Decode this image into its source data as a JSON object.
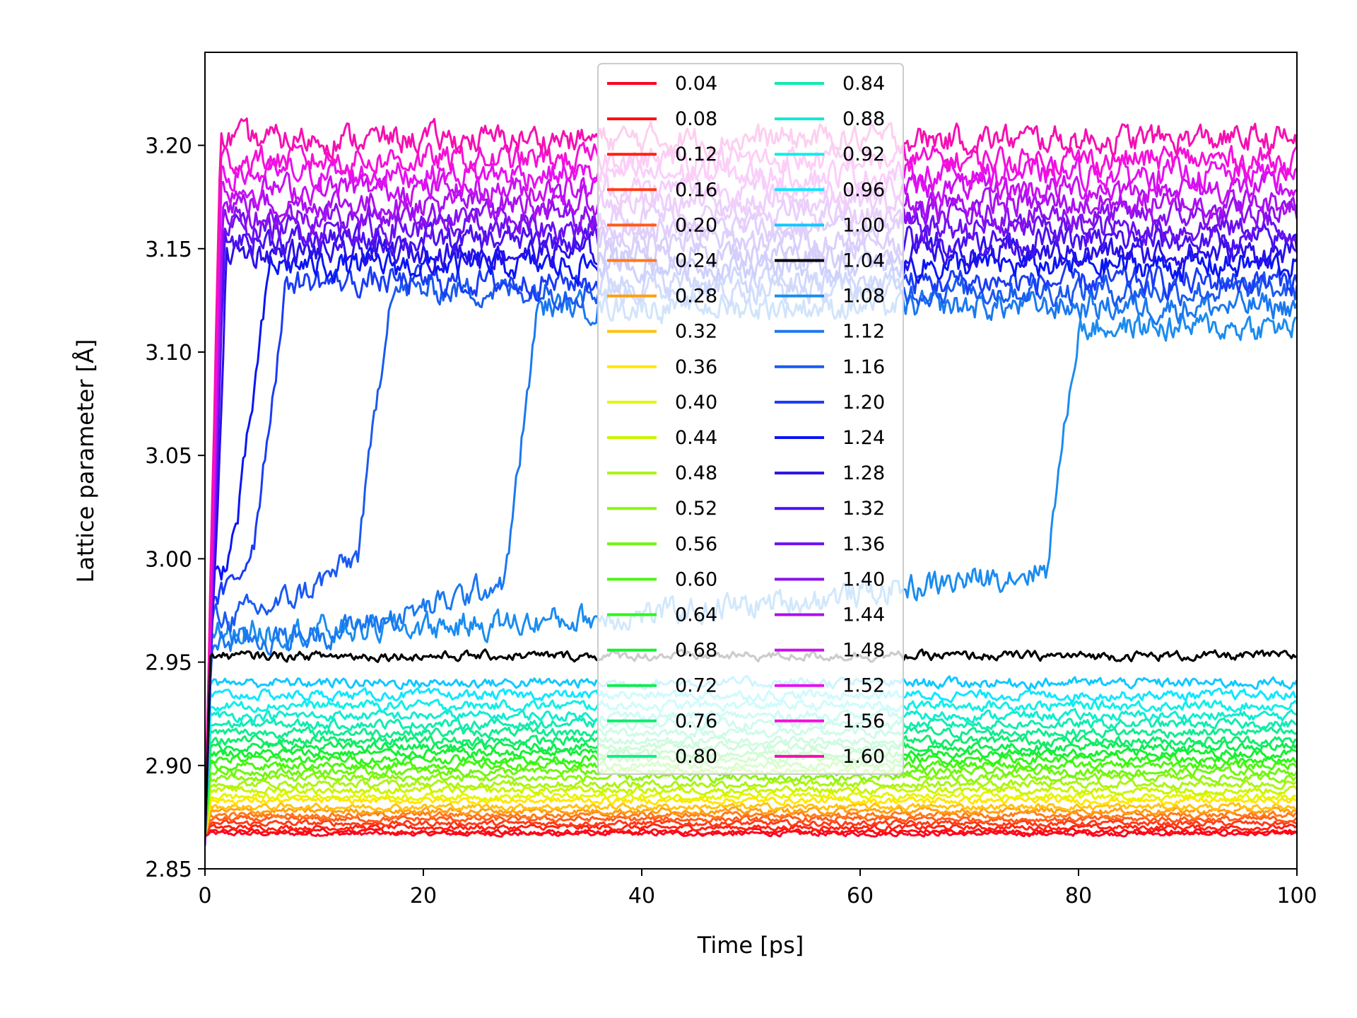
{
  "chart_data": {
    "type": "line",
    "xlabel": "Time [ps]",
    "ylabel": "Lattice parameter [Å]",
    "xlim": [
      0,
      100
    ],
    "ylim": [
      2.85,
      3.245
    ],
    "xticks": [
      "0",
      "20",
      "40",
      "60",
      "80",
      "100"
    ],
    "yticks": [
      "2.85",
      "2.90",
      "2.95",
      "3.00",
      "3.05",
      "3.10",
      "3.15",
      "3.20"
    ],
    "grid": false,
    "legend": {
      "placement": "top-center",
      "columns": 2
    },
    "noise_amplitude_note": "",
    "series": [
      {
        "name": "0.04",
        "color": "#ff0022",
        "baseline": 2.867,
        "jump_time": null,
        "final": null
      },
      {
        "name": "0.08",
        "color": "#ff0a12",
        "baseline": 2.868,
        "jump_time": null,
        "final": null
      },
      {
        "name": "0.12",
        "color": "#ff2010",
        "baseline": 2.87,
        "jump_time": null,
        "final": null
      },
      {
        "name": "0.16",
        "color": "#ff3a18",
        "baseline": 2.872,
        "jump_time": null,
        "final": null
      },
      {
        "name": "0.20",
        "color": "#ff5a1a",
        "baseline": 2.874,
        "jump_time": null,
        "final": null
      },
      {
        "name": "0.24",
        "color": "#ff7a1a",
        "baseline": 2.876,
        "jump_time": null,
        "final": null
      },
      {
        "name": "0.28",
        "color": "#ff9f10",
        "baseline": 2.878,
        "jump_time": null,
        "final": null
      },
      {
        "name": "0.32",
        "color": "#ffc210",
        "baseline": 2.88,
        "jump_time": null,
        "final": null
      },
      {
        "name": "0.36",
        "color": "#ffe600",
        "baseline": 2.883,
        "jump_time": null,
        "final": null
      },
      {
        "name": "0.40",
        "color": "#e6f500",
        "baseline": 2.885,
        "jump_time": null,
        "final": null
      },
      {
        "name": "0.44",
        "color": "#c8f500",
        "baseline": 2.888,
        "jump_time": null,
        "final": null
      },
      {
        "name": "0.48",
        "color": "#aaf510",
        "baseline": 2.891,
        "jump_time": null,
        "final": null
      },
      {
        "name": "0.52",
        "color": "#8cf510",
        "baseline": 2.894,
        "jump_time": null,
        "final": null
      },
      {
        "name": "0.56",
        "color": "#6ef510",
        "baseline": 2.897,
        "jump_time": null,
        "final": null
      },
      {
        "name": "0.60",
        "color": "#4ef510",
        "baseline": 2.9,
        "jump_time": null,
        "final": null
      },
      {
        "name": "0.64",
        "color": "#2ef51a",
        "baseline": 2.903,
        "jump_time": null,
        "final": null
      },
      {
        "name": "0.68",
        "color": "#16f030",
        "baseline": 2.906,
        "jump_time": null,
        "final": null
      },
      {
        "name": "0.72",
        "color": "#10ec50",
        "baseline": 2.909,
        "jump_time": null,
        "final": null
      },
      {
        "name": "0.76",
        "color": "#10ec70",
        "baseline": 2.912,
        "jump_time": null,
        "final": null
      },
      {
        "name": "0.80",
        "color": "#10ec90",
        "baseline": 2.916,
        "jump_time": null,
        "final": null
      },
      {
        "name": "0.84",
        "color": "#10ecb0",
        "baseline": 2.92,
        "jump_time": null,
        "final": null
      },
      {
        "name": "0.88",
        "color": "#10ecd0",
        "baseline": 2.924,
        "jump_time": null,
        "final": null
      },
      {
        "name": "0.92",
        "color": "#10eee8",
        "baseline": 2.929,
        "jump_time": null,
        "final": null
      },
      {
        "name": "0.96",
        "color": "#10e6ff",
        "baseline": 2.934,
        "jump_time": null,
        "final": null
      },
      {
        "name": "1.00",
        "color": "#10c8ff",
        "baseline": 2.94,
        "jump_time": null,
        "final": null
      },
      {
        "name": "1.04",
        "color": "#000000",
        "baseline": 2.953,
        "jump_time": null,
        "final": null
      },
      {
        "name": "1.08",
        "color": "#1a8cf0",
        "baseline": 2.965,
        "jump_time": 77,
        "final": 3.112
      },
      {
        "name": "1.12",
        "color": "#1a78f0",
        "baseline": 2.96,
        "jump_time": 27.5,
        "final": 3.122
      },
      {
        "name": "1.16",
        "color": "#1a5af0",
        "baseline": 2.972,
        "jump_time": 14,
        "final": 3.13
      },
      {
        "name": "1.20",
        "color": "#1a3cf5",
        "baseline": 2.98,
        "jump_time": 4.5,
        "final": 3.134
      },
      {
        "name": "1.24",
        "color": "#0a14f5",
        "baseline": 2.99,
        "jump_time": 3,
        "final": 3.142
      },
      {
        "name": "1.28",
        "color": "#2a10e6",
        "baseline": null,
        "jump_time": 0.8,
        "final": 3.148
      },
      {
        "name": "1.32",
        "color": "#4a10f0",
        "baseline": null,
        "jump_time": 0.6,
        "final": 3.154
      },
      {
        "name": "1.36",
        "color": "#6a10f0",
        "baseline": null,
        "jump_time": 0.5,
        "final": 3.16
      },
      {
        "name": "1.40",
        "color": "#8a10f0",
        "baseline": null,
        "jump_time": 0.4,
        "final": 3.166
      },
      {
        "name": "1.44",
        "color": "#aa10f0",
        "baseline": null,
        "jump_time": 0.4,
        "final": 3.172
      },
      {
        "name": "1.48",
        "color": "#c810f0",
        "baseline": null,
        "jump_time": 0.3,
        "final": 3.179
      },
      {
        "name": "1.52",
        "color": "#e610f0",
        "baseline": null,
        "jump_time": 0.3,
        "final": 3.186
      },
      {
        "name": "1.56",
        "color": "#f510d8",
        "baseline": null,
        "jump_time": 0.2,
        "final": 3.193
      },
      {
        "name": "1.60",
        "color": "#f510b0",
        "baseline": null,
        "jump_time": 0.2,
        "final": 3.203
      }
    ]
  }
}
